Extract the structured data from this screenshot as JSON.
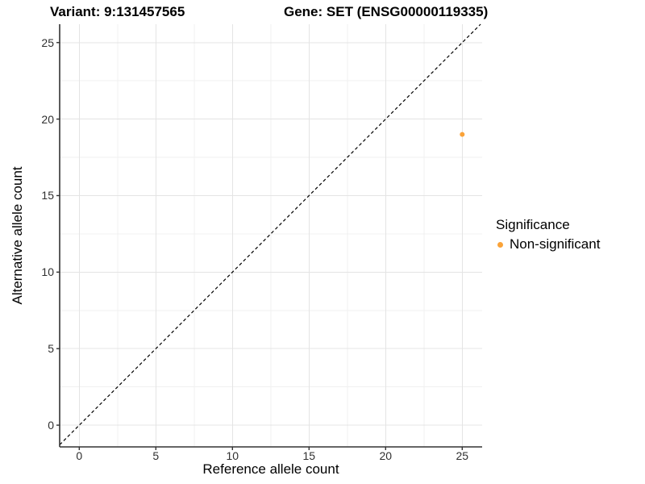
{
  "header": {
    "titles": [
      "Variant: 9:131457565",
      "Gene: SET (ENSG00000119335)"
    ]
  },
  "legend": {
    "title": "Significance",
    "items": [
      {
        "label": "Non-significant",
        "color": "#FAA339"
      }
    ]
  },
  "colors": {
    "background": "#FFFFFF",
    "grid_major": "#E4E4E4",
    "grid_minor": "#F0F0F0",
    "axis": "#333333",
    "tick_text": "#303030",
    "point": "#FAA339",
    "reference_line": "#000000"
  },
  "chart_data": {
    "type": "scatter",
    "titles": [
      "Variant: 9:131457565",
      "Gene: SET (ENSG00000119335)"
    ],
    "xlabel": "Reference allele count",
    "ylabel": "Alternative allele count",
    "xlim": [
      -1.28,
      26.3
    ],
    "ylim": [
      -1.42,
      26.2
    ],
    "x_ticks": [
      0,
      5,
      10,
      15,
      20,
      25
    ],
    "y_ticks": [
      0,
      5,
      10,
      15,
      20,
      25
    ],
    "minor_ticks": [
      2.5,
      7.5,
      12.5,
      17.5,
      22.5
    ],
    "grid": "major+minor",
    "legend_position": "right",
    "series": [
      {
        "name": "Non-significant",
        "color": "#FAA339",
        "points": [
          {
            "x": 25,
            "y": 19
          }
        ]
      }
    ],
    "reference_line": {
      "kind": "identity",
      "slope": 1,
      "intercept": 0,
      "style": "dashed",
      "color": "#000000"
    }
  }
}
